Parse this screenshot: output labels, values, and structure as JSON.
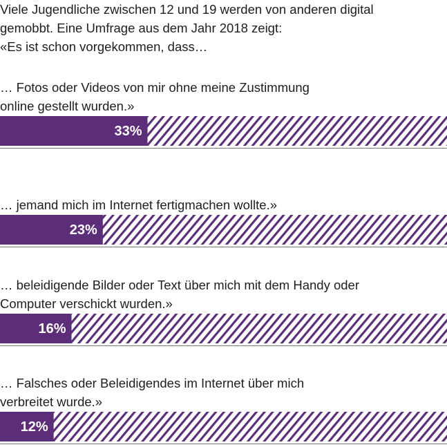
{
  "chart_data": {
    "type": "bar",
    "orientation": "horizontal",
    "title": "Viele Jugendliche zwischen 12 und 19 werden von anderen digital gemobbt. Eine Umfrage aus dem Jahr 2018 zeigt:",
    "subtitle": "«Es ist schon vorgekommen, dass…",
    "categories": [
      "… Fotos oder Videos von mir ohne meine Zustimmung\nonline gestellt wurden.»",
      "… jemand mich im Internet fertigmachen wollte.»",
      "… beleidigende Bilder oder Text über mich mit dem Handy oder\nComputer verschickt wurden.»",
      "… Falsches oder Beleidigendes im Internet über mich\nverbreitet wurde.»"
    ],
    "values": [
      33,
      23,
      16,
      12
    ],
    "value_labels": [
      "33%",
      "23%",
      "16%",
      "12%"
    ],
    "color": "#5c2d78",
    "xlim": [
      0,
      100
    ]
  }
}
